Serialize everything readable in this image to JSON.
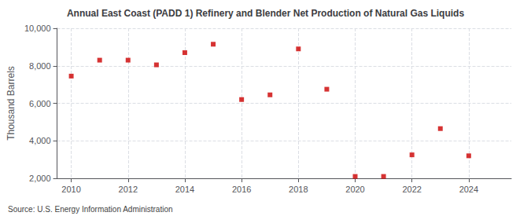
{
  "chart_data": {
    "type": "scatter",
    "title": "Annual East Coast (PADD 1) Refinery and Blender Net Production of Natural Gas Liquids",
    "ylabel": "Thousand Barrels",
    "annotations": [
      "Source: U.S. Energy Information Administration"
    ],
    "x": [
      2010,
      2011,
      2012,
      2013,
      2014,
      2015,
      2016,
      2017,
      2018,
      2019,
      2020,
      2021,
      2022,
      2023,
      2024
    ],
    "values": [
      7450,
      8300,
      8300,
      8050,
      8700,
      9150,
      6200,
      6450,
      8900,
      6750,
      2100,
      2100,
      3250,
      4650,
      3200
    ],
    "color": "#cc0000",
    "marker": "square",
    "xlim": [
      2009.5,
      2025.5
    ],
    "xticks": [
      2010,
      2012,
      2014,
      2016,
      2018,
      2020,
      2022,
      2024
    ],
    "ylim": [
      2000,
      10000
    ],
    "yticks": [
      {
        "value": 2000,
        "label": "2,000"
      },
      {
        "value": 4000,
        "label": "4,000"
      },
      {
        "value": 6000,
        "label": "6,000"
      },
      {
        "value": 8000,
        "label": "8,000"
      },
      {
        "value": 10000,
        "label": "10,000"
      }
    ],
    "grid": true
  }
}
